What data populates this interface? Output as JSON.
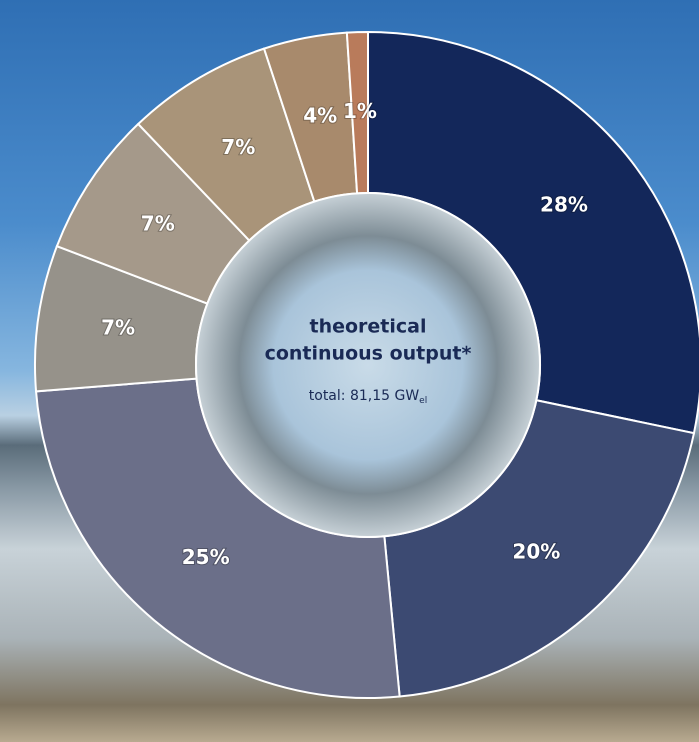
{
  "chart_data": {
    "type": "donut",
    "values": [
      28,
      20,
      25,
      7,
      7,
      7,
      4,
      1
    ],
    "value_labels": [
      "28%",
      "20%",
      "25%",
      "7%",
      "7%",
      "7%",
      "4%",
      "1%"
    ],
    "colors": [
      "#13275a",
      "#3c4a72",
      "#6b6f89",
      "#96928a",
      "#a5998a",
      "#a99479",
      "#a88a6c",
      "#b97b5b"
    ],
    "center_title": [
      "theoretical",
      "continuous output*"
    ],
    "center_total": "total: 81,15 GW",
    "center_total_subscript": "el"
  }
}
